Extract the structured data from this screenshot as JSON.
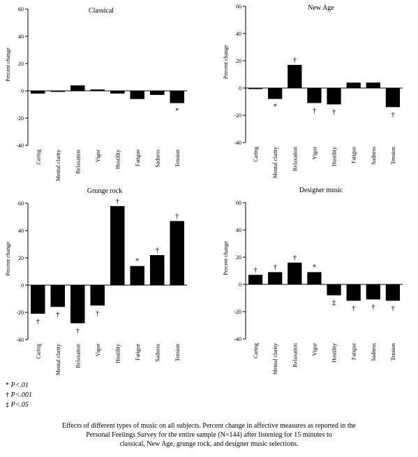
{
  "colors": {
    "bar": "#000000",
    "axis": "#000000",
    "background": "#ffffff"
  },
  "chart_data": [
    {
      "type": "bar",
      "title": "Classical",
      "ylabel": "Percent change",
      "ylim": [
        -40,
        60
      ],
      "yticks": [
        "60",
        "40",
        "20",
        "0",
        "-20",
        "-40"
      ],
      "categories": [
        "Caring",
        "Mental clarity",
        "Relaxation",
        "Vigor",
        "Hostility",
        "Fatigue",
        "Sadness",
        "Tension"
      ],
      "values": [
        -2,
        0,
        4,
        1,
        -2,
        -6,
        -3,
        -9
      ],
      "markers": [
        "",
        "",
        "",
        "",
        "",
        "",
        "",
        "*"
      ],
      "grid": false
    },
    {
      "type": "bar",
      "title": "New Age",
      "ylabel": "Percent change",
      "ylim": [
        -40,
        60
      ],
      "yticks": [
        "60",
        "40",
        "20",
        "0",
        "-20",
        "-40"
      ],
      "categories": [
        "Caring",
        "Mental clarity",
        "Relaxation",
        "Vigor",
        "Hostility",
        "Fatigue",
        "Sadness",
        "Tension"
      ],
      "values": [
        0,
        -8,
        17,
        -11,
        -12,
        4,
        4,
        -14
      ],
      "markers": [
        "",
        "*",
        "†",
        "†",
        "†",
        "",
        "",
        "†"
      ],
      "grid": false
    },
    {
      "type": "bar",
      "title": "Grunge rock",
      "ylabel": "Percent change",
      "ylim": [
        -40,
        60
      ],
      "yticks": [
        "60",
        "40",
        "20",
        "0",
        "-20",
        "-40"
      ],
      "categories": [
        "Caring",
        "Mental clarity",
        "Relaxation",
        "Vigor",
        "Hostility",
        "Fatigue",
        "Sadness",
        "Tension"
      ],
      "values": [
        -21,
        -16,
        -28,
        -15,
        58,
        14,
        22,
        47
      ],
      "markers": [
        "†",
        "†",
        "†",
        "†",
        "†",
        "*",
        "†",
        "†"
      ],
      "grid": false
    },
    {
      "type": "bar",
      "title": "Designer music",
      "ylabel": "Percent change",
      "ylim": [
        -40,
        60
      ],
      "yticks": [
        "60",
        "40",
        "20",
        "0",
        "-20",
        "-40"
      ],
      "categories": [
        "Caring",
        "Mental clarity",
        "Relaxation",
        "Vigor",
        "Hostility",
        "Fatigue",
        "Sadness",
        "Tension"
      ],
      "values": [
        7,
        9,
        16,
        9,
        -8,
        -12,
        -11,
        -12
      ],
      "markers": [
        "†",
        "†",
        "†",
        "*",
        "‡",
        "†",
        "†",
        "†"
      ],
      "grid": false
    }
  ],
  "legend": [
    {
      "symbol": "*",
      "text": "P<.01"
    },
    {
      "symbol": "†",
      "text": "P<.001"
    },
    {
      "symbol": "‡",
      "text": "P<.05"
    }
  ],
  "caption": [
    "Effects of different types of music on all subjects. Percent change in affective measures as reported in the",
    "Personal Feelings Survey for the entire sample (N=144) after listening for 15 minutes to",
    "classical, New Age, grunge rock, and designer music selections."
  ]
}
